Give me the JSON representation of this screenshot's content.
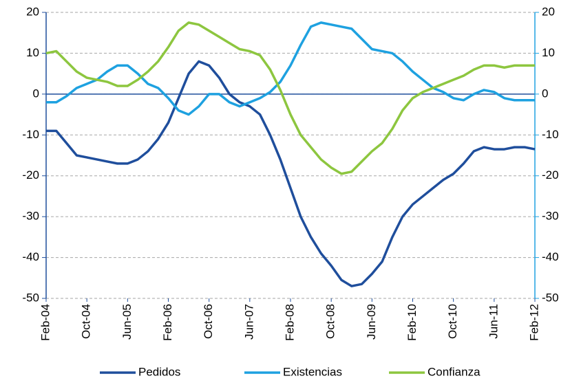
{
  "chart_data": {
    "type": "line",
    "categories": [
      "Feb-04",
      null,
      null,
      null,
      "Oct-04",
      null,
      null,
      null,
      "Jun-05",
      null,
      null,
      null,
      "Feb-06",
      null,
      null,
      null,
      "Oct-06",
      null,
      null,
      null,
      "Jun-07",
      null,
      null,
      null,
      "Feb-08",
      null,
      null,
      null,
      "Oct-08",
      null,
      null,
      null,
      "Jun-09",
      null,
      null,
      null,
      "Feb-10",
      null,
      null,
      null,
      "Oct-10",
      null,
      null,
      null,
      "Jun-11",
      null,
      null,
      null,
      "Feb-12"
    ],
    "series": [
      {
        "name": "Pedidos",
        "color": "#1f4e9c",
        "values": [
          -9,
          -9,
          -12,
          -15,
          -15.5,
          -16,
          -16.5,
          -17,
          -17,
          -16,
          -14,
          -11,
          -7,
          -1,
          5,
          8,
          7,
          4,
          0,
          -2,
          -3,
          -5,
          -10,
          -16,
          -23,
          -30,
          -35,
          -39,
          -42,
          -45.5,
          -47,
          -46.5,
          -44,
          -41,
          -35,
          -30,
          -27,
          -25,
          -23,
          -21,
          -19.5,
          -17,
          -14,
          -13,
          -13.5,
          -13.5,
          -13,
          -13,
          -13.5
        ]
      },
      {
        "name": "Existencias",
        "color": "#1ea1e0",
        "values": [
          -2,
          -2,
          -0.5,
          1.5,
          2.5,
          3.5,
          5.5,
          7,
          7,
          5,
          2.5,
          1.5,
          -1,
          -4,
          -5,
          -3,
          0,
          0,
          -2,
          -3,
          -2,
          -1,
          0.5,
          3,
          7,
          12,
          16.5,
          17.5,
          17,
          16.5,
          16,
          13.5,
          11,
          10.5,
          10,
          8,
          5.5,
          3.5,
          1.5,
          0.5,
          -1,
          -1.5,
          0,
          1,
          0.5,
          -1,
          -1.5,
          -1.5,
          -1.5
        ]
      },
      {
        "name": "Confianza",
        "color": "#8dc63f",
        "values": [
          10,
          10.5,
          8,
          5.5,
          4,
          3.5,
          3,
          2,
          2,
          3.5,
          5.5,
          8,
          11.5,
          15.5,
          17.5,
          17,
          15.5,
          14,
          12.5,
          11,
          10.5,
          9.5,
          6,
          1,
          -5,
          -10,
          -13,
          -16,
          -18,
          -19.5,
          -19,
          -16.5,
          -14,
          -12,
          -8.5,
          -4,
          -1,
          0.5,
          1.5,
          2.5,
          3.5,
          4.5,
          6,
          7,
          7,
          6.5,
          7,
          7,
          7
        ]
      }
    ],
    "ylim": [
      -50,
      20
    ],
    "yticks": [
      -50,
      -40,
      -30,
      -20,
      -10,
      0,
      10,
      20
    ],
    "y2lim": [
      -50,
      20
    ],
    "y2ticks": [
      -50,
      -40,
      -30,
      -20,
      -10,
      0,
      10,
      20
    ],
    "grid": true,
    "legend": "bottom"
  }
}
